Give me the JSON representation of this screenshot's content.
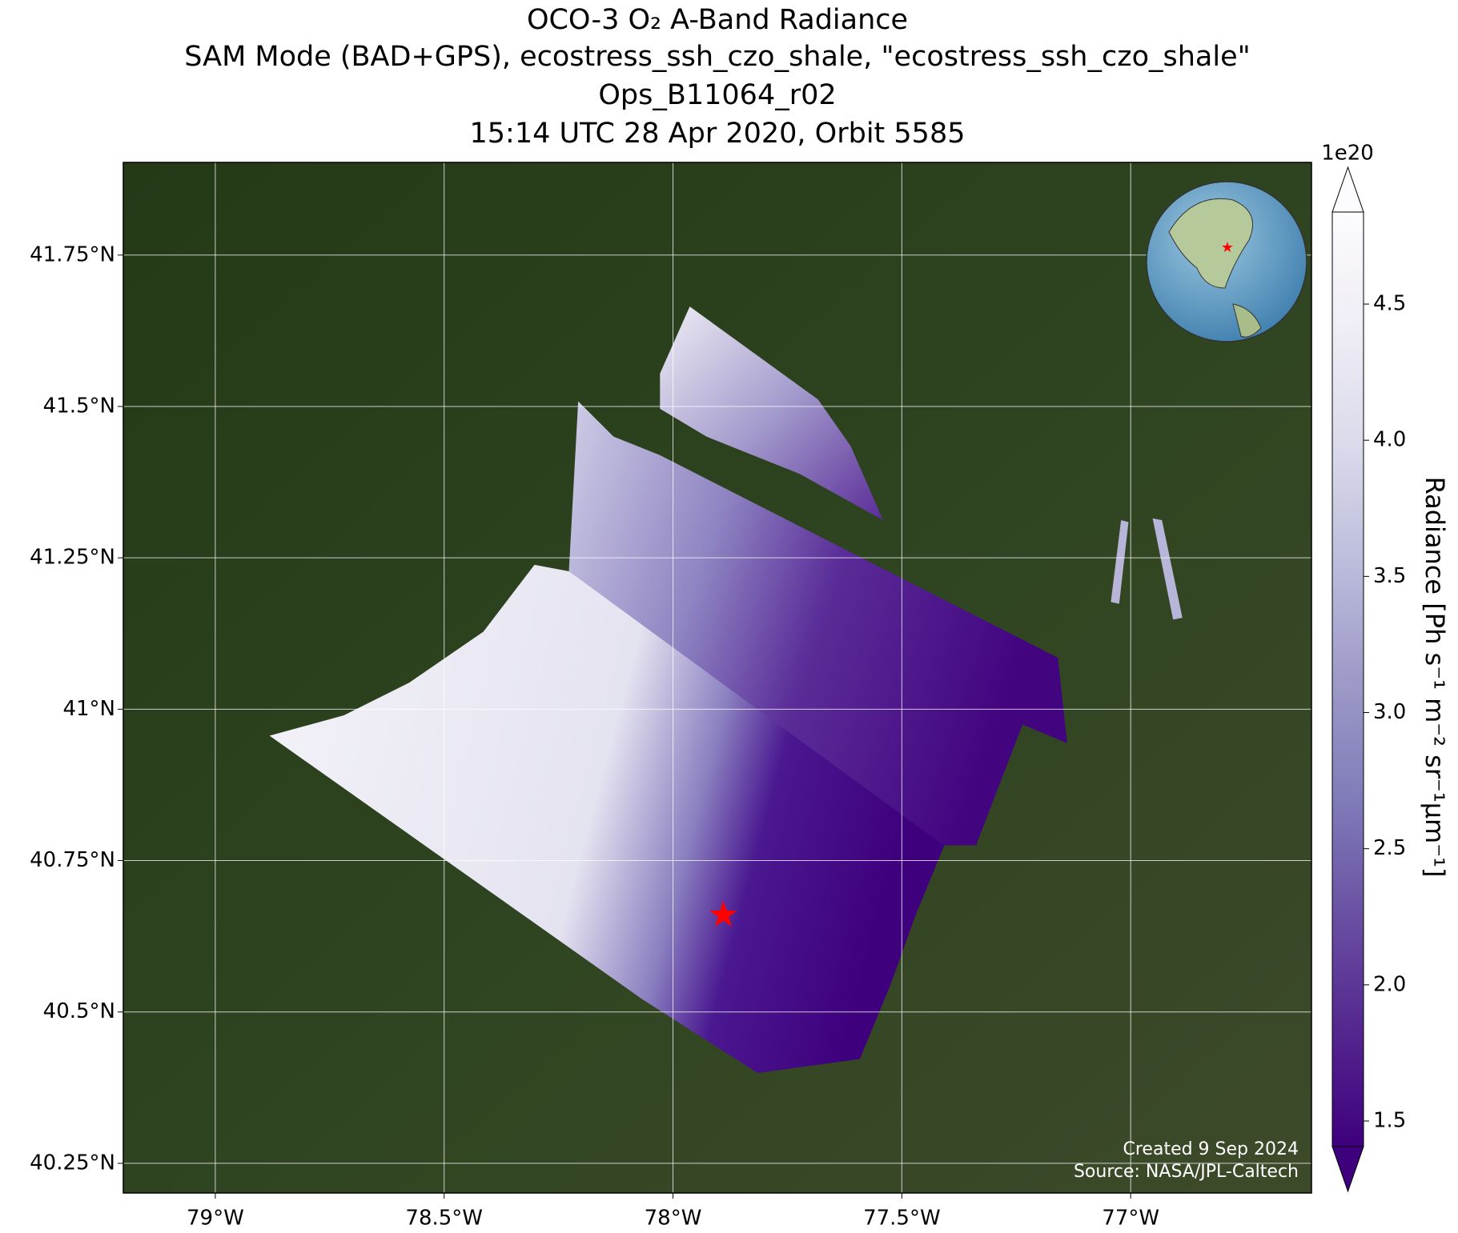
{
  "chart_data": {
    "type": "map",
    "title": [
      "OCO-3 O₂ A-Band Radiance",
      "SAM Mode (BAD+GPS), ecostress_ssh_czo_shale, \"ecostress_ssh_czo_shale\"",
      "Ops_B11064_r02",
      "15:14 UTC 28 Apr 2020, Orbit 5585"
    ],
    "xlim": [
      -79.201,
      -76.605
    ],
    "ylim": [
      40.201,
      41.903
    ],
    "xticks": [
      {
        "value": -79,
        "label": "79°W"
      },
      {
        "value": -78.5,
        "label": "78.5°W"
      },
      {
        "value": -78,
        "label": "78°W"
      },
      {
        "value": -77.5,
        "label": "77.5°W"
      },
      {
        "value": -77,
        "label": "77°W"
      }
    ],
    "yticks": [
      {
        "value": 40.25,
        "label": "40.25°N"
      },
      {
        "value": 40.5,
        "label": "40.5°N"
      },
      {
        "value": 40.75,
        "label": "40.75°N"
      },
      {
        "value": 41,
        "label": "41°N"
      },
      {
        "value": 41.25,
        "label": "41.25°N"
      },
      {
        "value": 41.5,
        "label": "41.5°N"
      },
      {
        "value": 41.75,
        "label": "41.75°N"
      }
    ],
    "grid": true,
    "marker": {
      "lon": -77.89,
      "lat": 40.66,
      "color": "#ff0000"
    },
    "colorbar": {
      "label": "Radiance [Ph s⁻¹ m⁻² sr⁻¹μm⁻¹]",
      "offset_label": "1e20",
      "lim": [
        1.406,
        4.838
      ],
      "ticks": [
        1.5,
        {
          "value": 2,
          "label": "2.0"
        },
        2.5,
        {
          "value": 3,
          "label": "3.0"
        },
        3.5,
        {
          "value": 4,
          "label": "4.0"
        },
        4.5
      ],
      "colors": [
        "#3f007d",
        "#54278f",
        "#6a51a3",
        "#807dba",
        "#9e9ac8",
        "#bcbddc",
        "#dadaeb",
        "#efedf5",
        "#fcfbfd"
      ]
    },
    "annotations": [
      "Created 9 Sep 2024",
      "Source: NASA/JPL-Caltech"
    ]
  }
}
